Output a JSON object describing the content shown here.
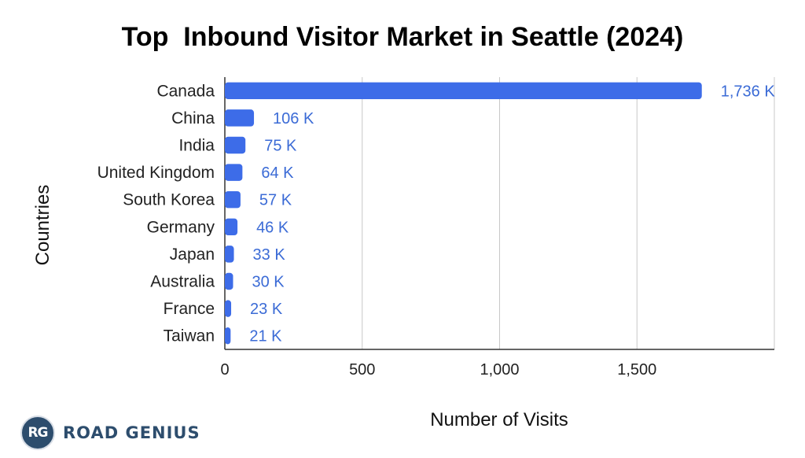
{
  "chart_data": {
    "type": "bar",
    "orientation": "horizontal",
    "title": "Top  Inbound Visitor Market in Seattle (2024)",
    "xlabel": "Number of Visits",
    "ylabel": "Countries",
    "categories": [
      "Canada",
      "China",
      "India",
      "United Kingdom",
      "South Korea",
      "Germany",
      "Japan",
      "Australia",
      "France",
      "Taiwan"
    ],
    "values": [
      1736,
      106,
      75,
      64,
      57,
      46,
      33,
      30,
      23,
      21
    ],
    "value_labels": [
      "1,736 K",
      "106 K",
      "75 K",
      "64 K",
      "57 K",
      "46 K",
      "33 K",
      "30 K",
      "23 K",
      "21 K"
    ],
    "xlim": [
      0,
      2000
    ],
    "xticks": [
      0,
      500,
      1000,
      1500
    ],
    "xtick_labels": [
      "0",
      "500",
      "1,000",
      "1,500"
    ],
    "grid": "vertical",
    "bar_color": "#3d6ce8"
  },
  "logo": {
    "badge_text": "RG",
    "brand_text": "ROAD GENIUS"
  }
}
